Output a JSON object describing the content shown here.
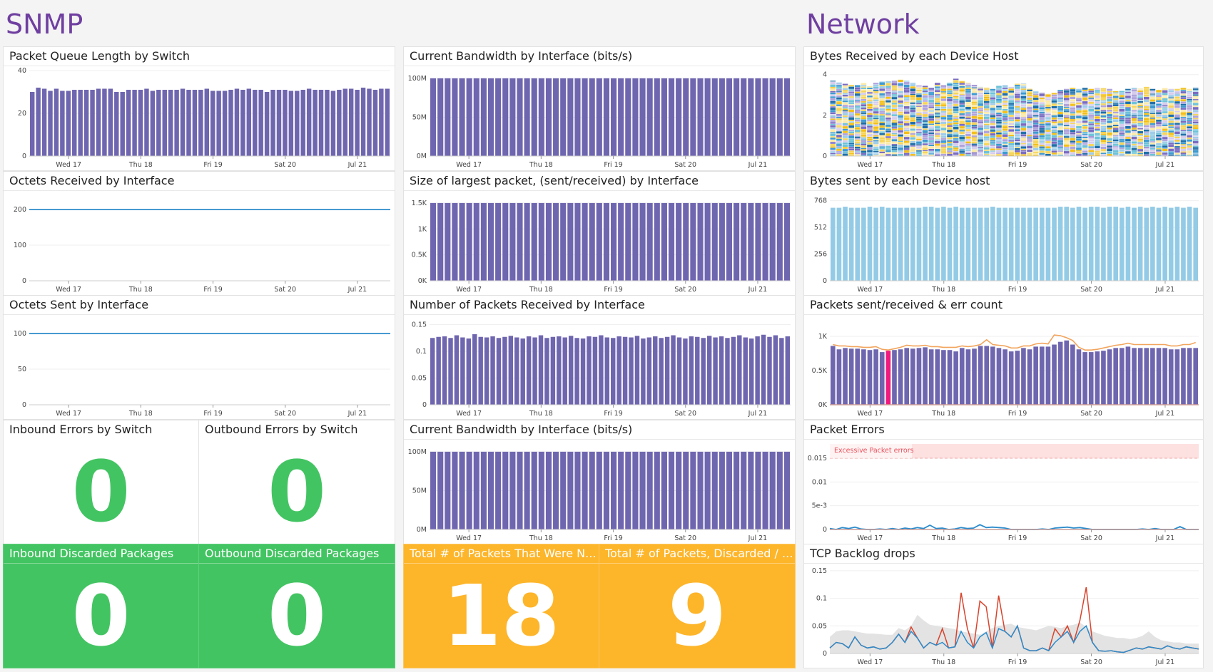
{
  "groups": {
    "snmp": "SNMP",
    "network": "Network"
  },
  "colors": {
    "purple_bar": "#6f66b0",
    "blue_line": "#2b8ccc",
    "light_blue_bar": "#93cbe6",
    "orange_line": "#f2a45c",
    "pink_bar": "#f0197d",
    "red_line": "#d8432c",
    "green_tile": "#43c462",
    "orange_tile": "#fdb52a",
    "band_gray": "#e3e3e3"
  },
  "x_ticks": [
    "Wed 17",
    "Thu 18",
    "Fri 19",
    "Sat 20",
    "Jul 21"
  ],
  "tiles": [
    {
      "title": "Inbound Errors by Switch",
      "value": "0",
      "style": "white"
    },
    {
      "title": "Outbound Errors by Switch",
      "value": "0",
      "style": "white"
    },
    {
      "title": "Inbound Discarded Packages",
      "value": "0",
      "style": "green"
    },
    {
      "title": "Outbound Discarded Packages",
      "value": "0",
      "style": "green"
    },
    {
      "title": "Total # of Packets That Were N...",
      "value": "18",
      "style": "orange"
    },
    {
      "title": "Total # of Packets, Discarded / ...",
      "value": "9",
      "style": "orange"
    }
  ],
  "chart_data": [
    {
      "title": "Packet Queue Length by Switch",
      "type": "bar",
      "color": "#6f66b0",
      "ylim": [
        0,
        40
      ],
      "yticks": [
        {
          "v": 0,
          "l": "0"
        },
        {
          "v": 20,
          "l": "20"
        },
        {
          "v": 40,
          "l": "40"
        }
      ],
      "values": [
        30,
        32,
        31.5,
        30.5,
        31.5,
        30.5,
        30.5,
        31,
        31,
        31,
        31,
        31.5,
        31.5,
        31.5,
        30,
        30,
        31,
        31,
        31,
        31.5,
        30.5,
        31,
        31,
        31,
        31,
        31.5,
        31,
        31,
        31,
        31.5,
        30.5,
        30.5,
        30.5,
        31,
        31.5,
        31,
        31.5,
        31,
        31,
        30,
        31,
        31,
        31,
        30.5,
        30.5,
        31,
        31.5,
        31,
        31,
        31,
        30.5,
        31,
        31.5,
        31.5,
        31,
        32,
        31.5,
        31,
        31.5,
        31.5
      ]
    },
    {
      "title": "Current Bandwidth by Interface (bits/s)",
      "type": "bar",
      "color": "#6f66b0",
      "ylim": [
        0,
        110
      ],
      "yticks": [
        {
          "v": 0,
          "l": "0M"
        },
        {
          "v": 50,
          "l": "50M"
        },
        {
          "v": 100,
          "l": "100M"
        }
      ],
      "values": [
        100,
        100,
        100,
        100,
        100,
        100,
        100,
        100,
        100,
        100,
        100,
        100,
        100,
        100,
        100,
        100,
        100,
        100,
        100,
        100,
        100,
        100,
        100,
        100,
        100,
        100,
        100,
        100,
        100,
        100,
        100,
        100,
        100,
        100,
        100,
        100,
        100,
        100,
        100,
        100,
        100,
        100,
        100,
        100,
        100,
        100,
        100,
        100,
        100,
        100
      ]
    },
    {
      "title": "Bytes Received by each Device Host",
      "type": "stacked",
      "ylim": [
        0,
        4.2
      ],
      "palette": [
        "#f6d55c",
        "#fbeaa8",
        "#7a6bc2",
        "#b1a4dc",
        "#3d9ad1",
        "#9fcde9",
        "#1f6fa8",
        "#f3c01b",
        "#d6cdee",
        "#6ec3d8"
      ],
      "yticks": [
        {
          "v": 0,
          "l": "0"
        },
        {
          "v": 2,
          "l": "2"
        },
        {
          "v": 4,
          "l": "4"
        }
      ],
      "values": [
        3.7,
        3.6,
        3.55,
        3.5,
        3.5,
        3.6,
        3.45,
        3.6,
        3.65,
        3.7,
        3.7,
        3.75,
        3.7,
        3.6,
        3.5,
        3.45,
        3.35,
        3.6,
        3.5,
        3.6,
        3.8,
        3.7,
        3.6,
        3.5,
        3.4,
        3.35,
        3.3,
        3.45,
        3.5,
        3.4,
        3.55,
        3.55,
        3.3,
        3.2,
        3.1,
        3.05,
        3.1,
        3.25,
        3.3,
        3.35,
        3.3,
        3.35,
        3.3,
        3.35,
        3.35,
        3.3,
        3.2,
        3.2,
        3.3,
        3.35,
        3.3,
        3.4,
        3.3,
        3.25,
        3.35,
        3.3,
        3.3,
        3.35,
        3.3,
        3.35
      ]
    },
    {
      "title": "Octets Received by Interface",
      "type": "line",
      "color": "#2b8ccc",
      "ylim": [
        0,
        240
      ],
      "yticks": [
        {
          "v": 0,
          "l": "0"
        },
        {
          "v": 100,
          "l": "100"
        },
        {
          "v": 200,
          "l": "200"
        }
      ],
      "values": [
        200,
        200,
        200,
        200,
        200,
        200,
        200,
        200,
        200,
        200
      ]
    },
    {
      "title": "Size of largest packet, (sent/received) by Interface",
      "type": "bar",
      "color": "#6f66b0",
      "ylim": [
        0,
        1.65
      ],
      "yticks": [
        {
          "v": 0,
          "l": "0K"
        },
        {
          "v": 0.5,
          "l": "0.5K"
        },
        {
          "v": 1,
          "l": "1K"
        },
        {
          "v": 1.5,
          "l": "1.5K"
        }
      ],
      "values": [
        1.5,
        1.5,
        1.5,
        1.5,
        1.5,
        1.5,
        1.5,
        1.5,
        1.5,
        1.5,
        1.5,
        1.5,
        1.5,
        1.5,
        1.5,
        1.5,
        1.5,
        1.5,
        1.5,
        1.5,
        1.5,
        1.5,
        1.5,
        1.5,
        1.5,
        1.5,
        1.5,
        1.5,
        1.5,
        1.5,
        1.5,
        1.5,
        1.5,
        1.5,
        1.5,
        1.5,
        1.5,
        1.5,
        1.5,
        1.5,
        1.5,
        1.5,
        1.5,
        1.5,
        1.5,
        1.5,
        1.5,
        1.5,
        1.5,
        1.5
      ]
    },
    {
      "title": "Bytes sent by each Device host",
      "type": "bar",
      "color": "#93cbe6",
      "ylim": [
        0,
        820
      ],
      "yticks": [
        {
          "v": 0,
          "l": "0"
        },
        {
          "v": 256,
          "l": "256"
        },
        {
          "v": 512,
          "l": "512"
        },
        {
          "v": 768,
          "l": "768"
        }
      ],
      "values": [
        700,
        700,
        710,
        700,
        700,
        700,
        710,
        700,
        710,
        700,
        700,
        700,
        700,
        700,
        700,
        710,
        710,
        700,
        710,
        700,
        710,
        700,
        700,
        700,
        700,
        700,
        710,
        700,
        700,
        700,
        700,
        700,
        700,
        700,
        700,
        700,
        700,
        710,
        710,
        700,
        710,
        700,
        710,
        710,
        700,
        710,
        710,
        700,
        710,
        700,
        710,
        700,
        710,
        700,
        710,
        700,
        710,
        700,
        710,
        700
      ]
    },
    {
      "title": "Octets Sent by Interface",
      "type": "line",
      "color": "#2b8ccc",
      "ylim": [
        0,
        120
      ],
      "yticks": [
        {
          "v": 0,
          "l": "0"
        },
        {
          "v": 50,
          "l": "50"
        },
        {
          "v": 100,
          "l": "100"
        }
      ],
      "values": [
        100,
        100,
        100,
        100,
        100,
        100,
        100,
        100,
        100,
        100
      ]
    },
    {
      "title": "Number of Packets Received by Interface",
      "type": "bar",
      "color": "#6f66b0",
      "ylim": [
        0,
        0.16
      ],
      "yticks": [
        {
          "v": 0,
          "l": "0"
        },
        {
          "v": 0.05,
          "l": "0.05"
        },
        {
          "v": 0.1,
          "l": "0.1"
        },
        {
          "v": 0.15,
          "l": "0.15"
        }
      ],
      "values": [
        0.125,
        0.127,
        0.128,
        0.125,
        0.13,
        0.126,
        0.124,
        0.132,
        0.127,
        0.126,
        0.128,
        0.125,
        0.127,
        0.129,
        0.126,
        0.124,
        0.128,
        0.126,
        0.13,
        0.125,
        0.127,
        0.128,
        0.126,
        0.129,
        0.125,
        0.124,
        0.128,
        0.127,
        0.13,
        0.126,
        0.125,
        0.128,
        0.127,
        0.126,
        0.129,
        0.124,
        0.126,
        0.128,
        0.125,
        0.127,
        0.13,
        0.126,
        0.124,
        0.128,
        0.127,
        0.125,
        0.129,
        0.126,
        0.128,
        0.125,
        0.127,
        0.13,
        0.126,
        0.124,
        0.128,
        0.131,
        0.127,
        0.13,
        0.125,
        0.128
      ]
    },
    {
      "title": "Packets sent/received & err count",
      "type": "bar+line",
      "color": "#6f66b0",
      "highlight_color": "#f0197d",
      "highlight_index": 9,
      "line_color": "#f2a45c",
      "baseline_color": "#d8432c",
      "ylim": [
        0,
        1.25
      ],
      "yticks": [
        {
          "v": 0,
          "l": "0K"
        },
        {
          "v": 0.5,
          "l": "0.5K"
        },
        {
          "v": 1,
          "l": "1K"
        }
      ],
      "values": [
        0.86,
        0.81,
        0.83,
        0.82,
        0.82,
        0.81,
        0.8,
        0.81,
        0.77,
        0.79,
        0.8,
        0.81,
        0.83,
        0.82,
        0.83,
        0.84,
        0.81,
        0.81,
        0.8,
        0.8,
        0.78,
        0.83,
        0.81,
        0.82,
        0.86,
        0.86,
        0.85,
        0.83,
        0.81,
        0.78,
        0.79,
        0.83,
        0.81,
        0.85,
        0.85,
        0.85,
        0.88,
        0.92,
        0.94,
        0.88,
        0.81,
        0.77,
        0.77,
        0.78,
        0.79,
        0.81,
        0.83,
        0.83,
        0.85,
        0.83,
        0.83,
        0.83,
        0.83,
        0.83,
        0.83,
        0.81,
        0.81,
        0.83,
        0.83,
        0.83
      ],
      "line_values": [
        0.88,
        0.86,
        0.86,
        0.85,
        0.85,
        0.84,
        0.84,
        0.85,
        0.81,
        0.8,
        0.82,
        0.84,
        0.87,
        0.86,
        0.86,
        0.87,
        0.85,
        0.85,
        0.84,
        0.84,
        0.84,
        0.86,
        0.85,
        0.86,
        0.88,
        0.95,
        0.88,
        0.87,
        0.86,
        0.83,
        0.83,
        0.86,
        0.86,
        0.89,
        0.9,
        0.89,
        1.02,
        1.01,
        0.98,
        0.94,
        0.84,
        0.8,
        0.8,
        0.81,
        0.83,
        0.85,
        0.87,
        0.88,
        0.9,
        0.88,
        0.88,
        0.88,
        0.88,
        0.88,
        0.88,
        0.86,
        0.86,
        0.88,
        0.88,
        0.91
      ]
    },
    {
      "title": "Current Bandwidth by Interface (bits/s)",
      "type": "bar",
      "color": "#6f66b0",
      "ylim": [
        0,
        110
      ],
      "yticks": [
        {
          "v": 0,
          "l": "0M"
        },
        {
          "v": 50,
          "l": "50M"
        },
        {
          "v": 100,
          "l": "100M"
        }
      ],
      "values": [
        100,
        100,
        100,
        100,
        100,
        100,
        100,
        100,
        100,
        100,
        100,
        100,
        100,
        100,
        100,
        100,
        100,
        100,
        100,
        100,
        100,
        100,
        100,
        100,
        100,
        100,
        100,
        100,
        100,
        100,
        100,
        100,
        100,
        100,
        100,
        100,
        100,
        100,
        100,
        100,
        100,
        100,
        100,
        100,
        100,
        100,
        100,
        100,
        100,
        100
      ]
    },
    {
      "title": "Packet Errors",
      "type": "threshold-line",
      "color": "#2b8ccc",
      "baseline_color": "#c0392b",
      "ylim": [
        0,
        0.018
      ],
      "threshold": {
        "from": 0.015,
        "to": 0.018,
        "label": "Excessive Packet errors",
        "color": "#fde1e1",
        "text_color": "#e8505b"
      },
      "yticks": [
        {
          "v": 0,
          "l": "0"
        },
        {
          "v": 0.005,
          "l": "5e-3"
        },
        {
          "v": 0.01,
          "l": "0.01"
        },
        {
          "v": 0.015,
          "l": "0.015"
        }
      ],
      "values": [
        0.0002,
        0,
        0.0004,
        0.0002,
        0.0005,
        0.0001,
        0,
        0,
        0.0001,
        0,
        0.0002,
        0,
        0.0003,
        0.0001,
        0.0004,
        0.0002,
        0.0009,
        0.0002,
        0.0003,
        0,
        0.0001,
        0.0004,
        0.0002,
        0.0003,
        0.001,
        0.0004,
        0.0005,
        0.0004,
        0.0003,
        0,
        0,
        0,
        0,
        0,
        0.0001,
        0,
        0.0003,
        0.0004,
        0.0005,
        0.0003,
        0.0004,
        0.0002,
        0,
        0,
        0,
        0,
        0,
        0,
        0,
        0,
        0.0001,
        0,
        0.0002,
        0,
        0,
        0,
        0.0006,
        0,
        0,
        0
      ]
    },
    {
      "title": "TCP Backlog drops",
      "type": "band-line",
      "color": "#2b8ccc",
      "spike_color": "#d8432c",
      "band_color": "#e3e3e3",
      "ylim": [
        0,
        0.155
      ],
      "yticks": [
        {
          "v": 0,
          "l": "0"
        },
        {
          "v": 0.05,
          "l": "0.05"
        },
        {
          "v": 0.1,
          "l": "0.1"
        },
        {
          "v": 0.15,
          "l": "0.15"
        }
      ],
      "band": [
        0.03,
        0.04,
        0.042,
        0.042,
        0.04,
        0.038,
        0.036,
        0.036,
        0.035,
        0.034,
        0.034,
        0.046,
        0.042,
        0.05,
        0.07,
        0.06,
        0.052,
        0.05,
        0.048,
        0.046,
        0.044,
        0.04,
        0.038,
        0.036,
        0.034,
        0.04,
        0.046,
        0.05,
        0.052,
        0.054,
        0.048,
        0.046,
        0.044,
        0.042,
        0.046,
        0.05,
        0.048,
        0.046,
        0.05,
        0.052,
        0.056,
        0.048,
        0.04,
        0.036,
        0.032,
        0.03,
        0.028,
        0.028,
        0.026,
        0.028,
        0.032,
        0.04,
        0.03,
        0.024,
        0.022,
        0.02,
        0.02,
        0.018,
        0.018,
        0.018
      ],
      "values": [
        0.01,
        0.02,
        0.018,
        0.01,
        0.03,
        0.015,
        0.01,
        0.012,
        0.008,
        0.01,
        0.02,
        0.035,
        0.02,
        0.04,
        0.028,
        0.01,
        0.02,
        0.015,
        0.02,
        0.01,
        0.012,
        0.04,
        0.02,
        0.01,
        0.03,
        0.038,
        0.01,
        0.045,
        0.04,
        0.03,
        0.05,
        0.01,
        0.005,
        0.005,
        0.01,
        0.005,
        0.02,
        0.03,
        0.04,
        0.02,
        0.04,
        0.05,
        0.02,
        0.005,
        0.004,
        0.005,
        0.003,
        0.002,
        0.006,
        0.01,
        0.008,
        0.012,
        0.01,
        0.008,
        0.014,
        0.01,
        0.008,
        0.012,
        0.01,
        0.008
      ],
      "spikes": [
        0.01,
        0.02,
        0.018,
        0.01,
        0.03,
        0.015,
        0.01,
        0.012,
        0.008,
        0.01,
        0.02,
        0.035,
        0.02,
        0.048,
        0.028,
        0.01,
        0.02,
        0.015,
        0.045,
        0.01,
        0.012,
        0.11,
        0.045,
        0.01,
        0.095,
        0.085,
        0.01,
        0.105,
        0.04,
        0.03,
        0.05,
        0.01,
        0.005,
        0.005,
        0.01,
        0.005,
        0.045,
        0.03,
        0.05,
        0.02,
        0.06,
        0.12,
        0.02,
        0.005,
        0.004,
        0.005,
        0.003,
        0.002,
        0.006,
        0.01,
        0.008,
        0.012,
        0.01,
        0.008,
        0.014,
        0.01,
        0.008,
        0.012,
        0.01,
        0.008
      ]
    }
  ]
}
